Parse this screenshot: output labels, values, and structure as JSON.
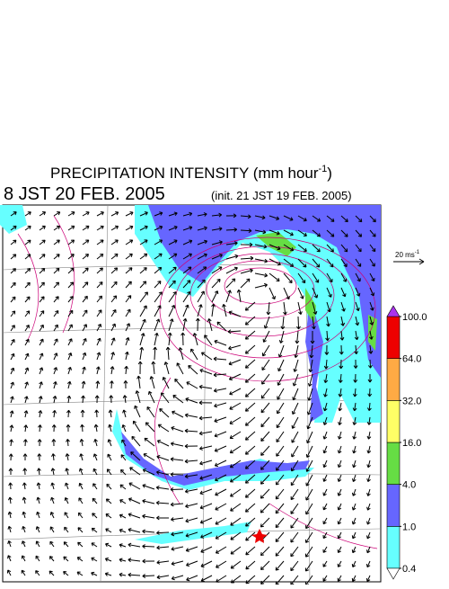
{
  "header": {
    "title": "PRECIPITATION INTENSITY (mm hour",
    "title_sup": "-1",
    "title_end": ")",
    "time": "8 JST 20 FEB. 2005",
    "init": "(init. 21 JST 19 FEB. 2005)"
  },
  "vector_scale": {
    "label": "20 ms",
    "label_sup": "-1"
  },
  "colorbar": {
    "levels": [
      {
        "value": 0.4,
        "label": "0.4"
      },
      {
        "value": 1,
        "label": "1.0"
      },
      {
        "value": 4,
        "label": "4.0"
      },
      {
        "value": 16,
        "label": "16.0"
      },
      {
        "value": 32,
        "label": "32.0"
      },
      {
        "value": 64,
        "label": "64.0"
      },
      {
        "value": 100,
        "label": "100.0"
      }
    ],
    "colors": [
      "#66ffff",
      "#6666ff",
      "#66dd44",
      "#ffff66",
      "#ffaa44",
      "#ee0000"
    ],
    "under_color": "#ffffff",
    "over_color": "#aa33ee"
  }
}
